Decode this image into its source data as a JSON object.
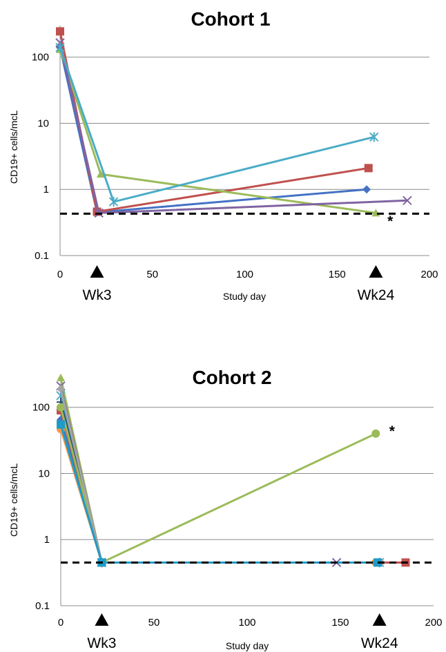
{
  "chart_data": [
    {
      "type": "line",
      "title": "Cohort 1",
      "xlabel": "Study day",
      "ylabel": "CD19+ cells/mcL",
      "y_scale": "log",
      "xlim": [
        0,
        200
      ],
      "ylim": [
        0.1,
        300
      ],
      "x_ticks": [
        "0",
        "50",
        "100",
        "150",
        "200"
      ],
      "y_ticks": [
        "0.1",
        "1",
        "10",
        "100"
      ],
      "grid": "horizontal",
      "timepoint_markers": [
        {
          "day": 20,
          "label": "Wk3"
        },
        {
          "day": 171,
          "label": "Wk24"
        }
      ],
      "threshold": {
        "value": 0.43,
        "style": "dashed"
      },
      "annotations": [
        {
          "text": "*",
          "x": 175,
          "y": 0.34
        }
      ],
      "series": [
        {
          "color": "#4472C4",
          "marker": "diamond",
          "points": [
            [
              0,
              140
            ],
            [
              20,
              0.45
            ],
            [
              166,
              1.0
            ]
          ]
        },
        {
          "color": "#C0504D",
          "marker": "square",
          "points": [
            [
              0,
              245
            ],
            [
              20,
              0.46
            ],
            [
              167,
              2.1
            ]
          ]
        },
        {
          "color": "#9BBB59",
          "marker": "triangle",
          "points": [
            [
              0,
              130
            ],
            [
              22,
              1.7
            ],
            [
              171,
              0.44
            ]
          ]
        },
        {
          "color": "#8064A2",
          "marker": "x",
          "points": [
            [
              0,
              165
            ],
            [
              21,
              0.44
            ],
            [
              188,
              0.68
            ]
          ]
        },
        {
          "color": "#4BACC6",
          "marker": "asterisk",
          "points": [
            [
              0,
              140
            ],
            [
              29,
              0.65
            ],
            [
              170,
              6.2
            ]
          ]
        }
      ]
    },
    {
      "type": "line",
      "title": "Cohort 2",
      "xlabel": "Study day",
      "ylabel": "CD19+ cells/mcL",
      "y_scale": "log",
      "xlim": [
        0,
        200
      ],
      "ylim": [
        0.1,
        300
      ],
      "x_ticks": [
        "0",
        "50",
        "100",
        "150",
        "200"
      ],
      "y_ticks": [
        "0.1",
        "1",
        "10",
        "100"
      ],
      "grid": "horizontal",
      "timepoint_markers": [
        {
          "day": 22,
          "label": "Wk3"
        },
        {
          "day": 171,
          "label": "Wk24"
        }
      ],
      "threshold": {
        "value": 0.45,
        "style": "dashed"
      },
      "annotations": [
        {
          "text": "*",
          "x": 174,
          "y": 45
        }
      ],
      "series": [
        {
          "color": "#4472C4",
          "marker": "diamond",
          "points": [
            [
              0,
              65
            ],
            [
              22,
              0.45
            ],
            [
              169,
              0.45
            ]
          ]
        },
        {
          "color": "#C0504D",
          "marker": "square",
          "points": [
            [
              0,
              90
            ],
            [
              22,
              0.45
            ],
            [
              185,
              0.45
            ]
          ]
        },
        {
          "color": "#9BBB59",
          "marker": "triangle",
          "points": [
            [
              0,
              280
            ],
            [
              22,
              0.45
            ],
            [
              170,
              0.45
            ]
          ]
        },
        {
          "color": "#8064A2",
          "marker": "x",
          "points": [
            [
              0,
              210
            ],
            [
              22,
              0.45
            ],
            [
              148,
              0.45
            ]
          ]
        },
        {
          "color": "#4BACC6",
          "marker": "asterisk",
          "points": [
            [
              0,
              150
            ],
            [
              22,
              0.45
            ],
            [
              171,
              0.45
            ]
          ]
        },
        {
          "color": "#F79646",
          "marker": "circle",
          "points": [
            [
              0,
              47
            ],
            [
              22,
              0.45
            ],
            [
              169,
              0.45
            ]
          ]
        },
        {
          "color": "#2C4D75",
          "marker": "plus",
          "points": [
            [
              0,
              120
            ],
            [
              22,
              0.45
            ],
            [
              171,
              0.45
            ]
          ]
        },
        {
          "color": "#9BBB59",
          "marker": "circle",
          "points": [
            [
              0,
              100
            ],
            [
              22,
              0.45
            ],
            [
              169,
              40
            ]
          ]
        },
        {
          "color": "#A5A5A5",
          "marker": "diamond",
          "points": [
            [
              0,
              190
            ],
            [
              22,
              0.45
            ],
            [
              172,
              0.45
            ]
          ]
        },
        {
          "color": "#1F9BC8",
          "marker": "square",
          "points": [
            [
              0,
              55
            ],
            [
              22,
              0.45
            ],
            [
              170,
              0.45
            ]
          ]
        }
      ]
    }
  ]
}
